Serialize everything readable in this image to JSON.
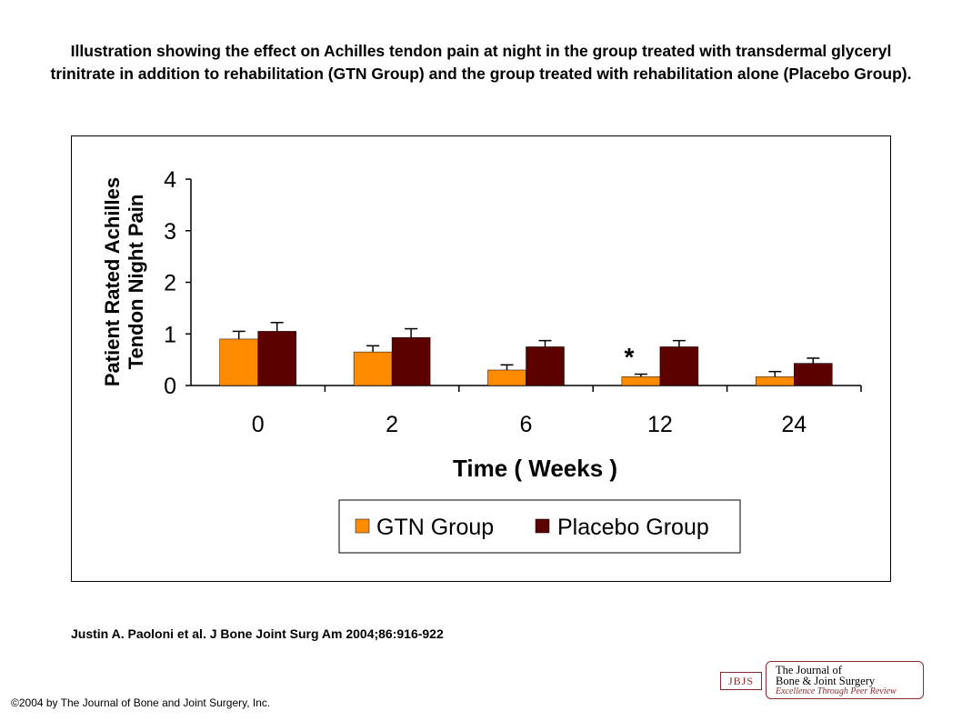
{
  "figure": {
    "title": "Illustration showing the effect on Achilles tendon pain at night in the group treated with transdermal glyceryl trinitrate in addition to rehabilitation (GTN Group) and the group treated with rehabilitation alone (Placebo Group).",
    "citation": "Justin A. Paoloni et al. J Bone Joint Surg Am 2004;86:916-922",
    "copyright": "©2004 by The Journal of Bone and Joint Surgery, Inc."
  },
  "logo": {
    "abbrev": "JBJS",
    "line1": "The Journal of",
    "line2": "Bone & Joint Surgery",
    "tagline": "Excellence Through Peer Review"
  },
  "chart_data": {
    "type": "bar",
    "title": "",
    "xlabel": "Time ( Weeks )",
    "ylabel": [
      "Patient Rated Achilles",
      "Tendon Night Pain"
    ],
    "categories": [
      "0",
      "2",
      "6",
      "12",
      "24"
    ],
    "ylim": [
      0,
      4
    ],
    "yticks": [
      "0",
      "1",
      "2",
      "3",
      "4"
    ],
    "grid": false,
    "legend_position": "bottom",
    "series": [
      {
        "name": "GTN Group",
        "color": "#ff8c00",
        "values": [
          0.9,
          0.65,
          0.3,
          0.17,
          0.17
        ],
        "errors": [
          0.15,
          0.12,
          0.1,
          0.05,
          0.1
        ]
      },
      {
        "name": "Placebo Group",
        "color": "#5c0000",
        "values": [
          1.05,
          0.93,
          0.75,
          0.75,
          0.43
        ],
        "errors": [
          0.17,
          0.17,
          0.12,
          0.12,
          0.1
        ]
      }
    ],
    "annotations": [
      {
        "category": "12",
        "text": "*"
      }
    ]
  }
}
